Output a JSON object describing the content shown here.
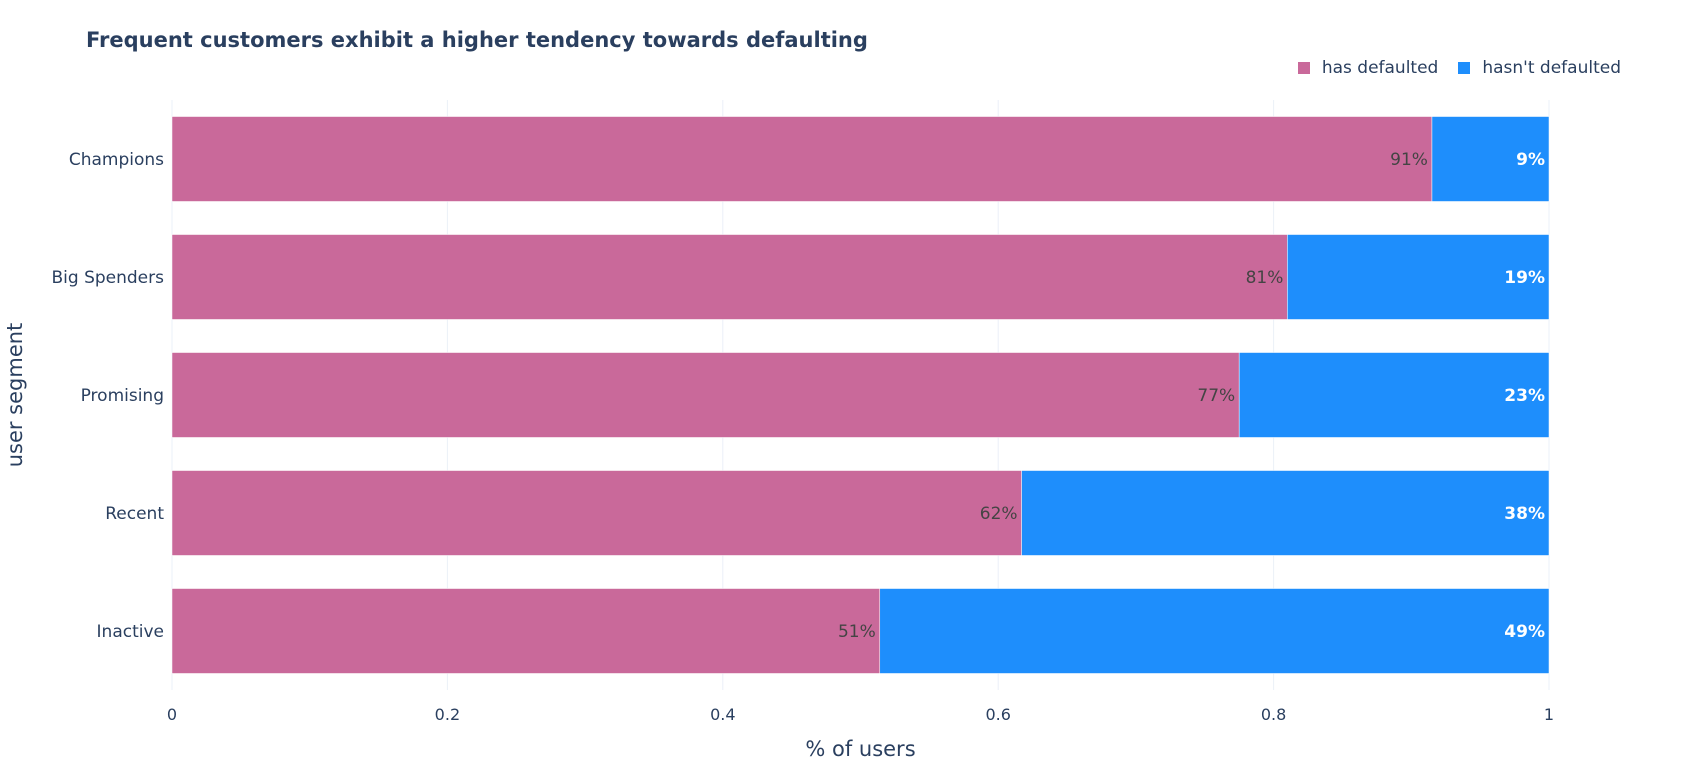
{
  "chart_data": {
    "type": "bar",
    "orientation": "horizontal",
    "stacked": true,
    "title": "Frequent customers exhibit a higher tendency towards defaulting",
    "xlabel": "% of users",
    "ylabel": "user segment",
    "xlim": [
      0,
      1
    ],
    "x_ticks": [
      "0",
      "0.2",
      "0.4",
      "0.6",
      "0.8",
      "1"
    ],
    "categories": [
      "Champions",
      "Big Spenders",
      "Promising",
      "Recent",
      "Inactive"
    ],
    "series": [
      {
        "name": "has defaulted",
        "color": "#c9699a",
        "values": [
          0.915,
          0.81,
          0.775,
          0.617,
          0.514
        ],
        "labels": [
          "91%",
          "81%",
          "77%",
          "62%",
          "51%"
        ]
      },
      {
        "name": "hasn't defaulted",
        "color": "#1e8efc",
        "values": [
          0.085,
          0.19,
          0.225,
          0.383,
          0.486
        ],
        "labels": [
          "9%",
          "19%",
          "23%",
          "38%",
          "49%"
        ]
      }
    ],
    "legend_position": "top-right",
    "grid": true
  }
}
